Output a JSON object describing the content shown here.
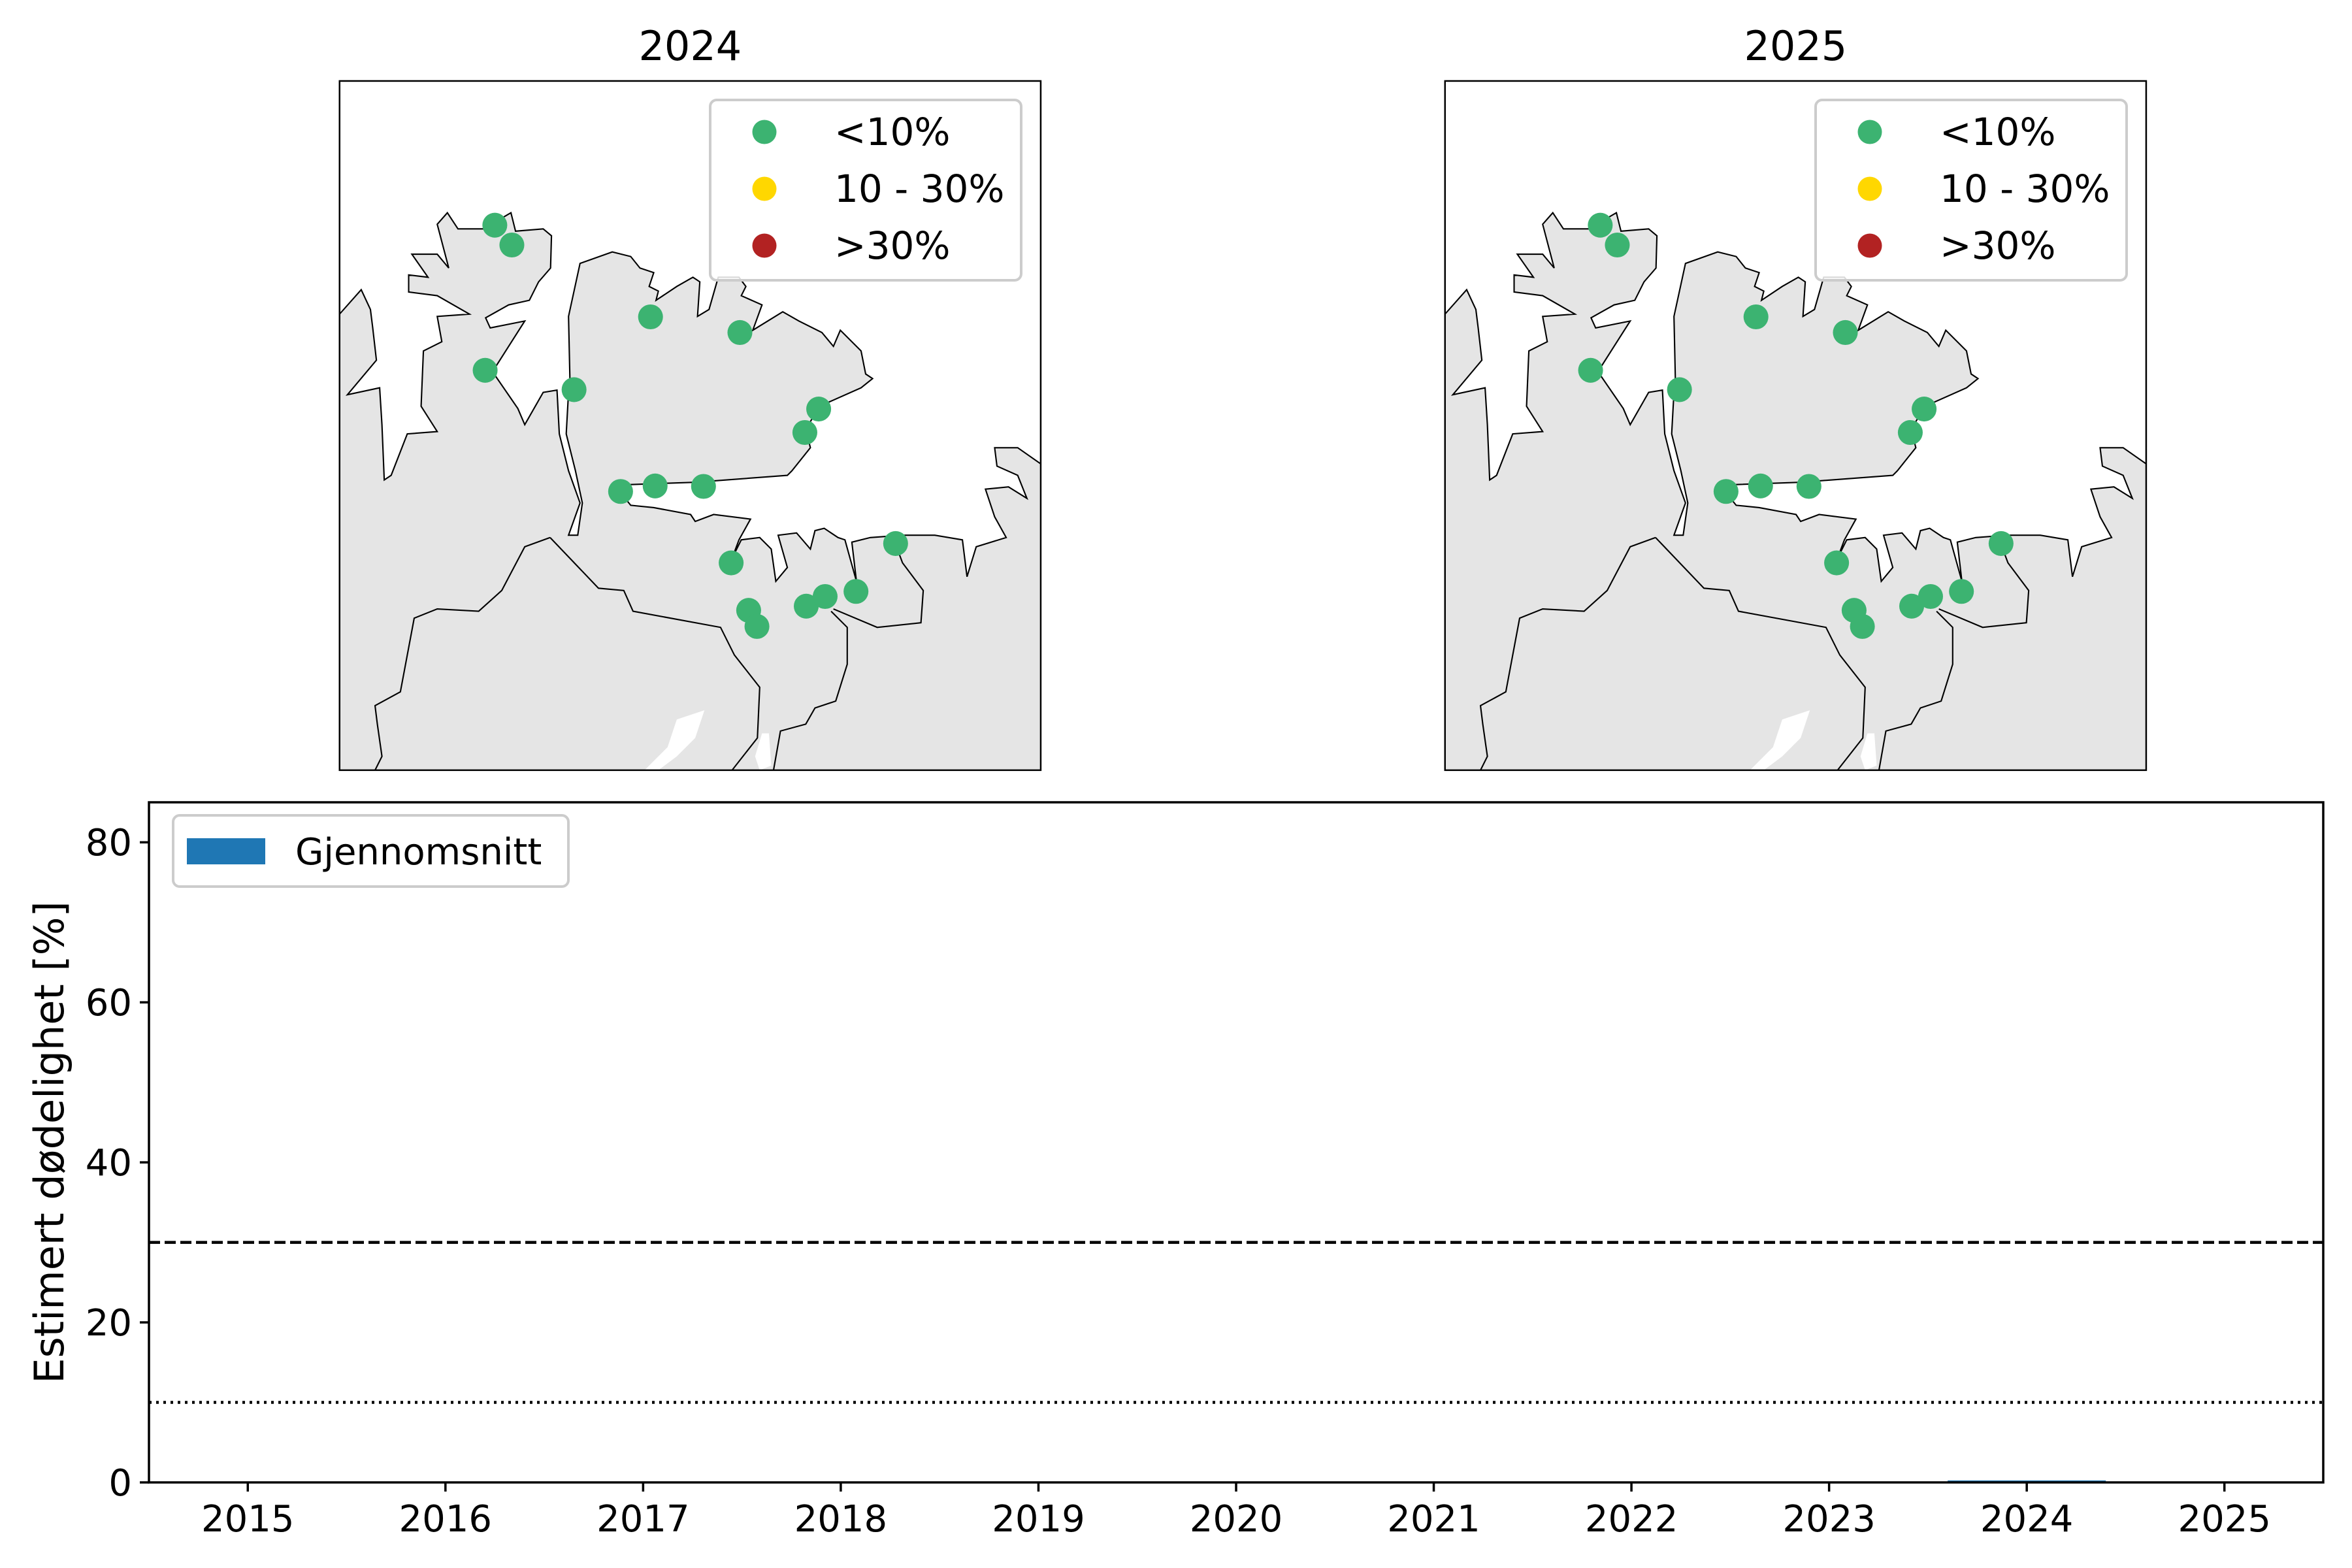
{
  "maps": [
    {
      "title": "2024",
      "sites": [
        "<10%",
        "<10%",
        "<10%",
        "<10%",
        "<10%",
        "<10%",
        "<10%",
        "<10%",
        "<10%",
        "<10%",
        "<10%",
        "<10%",
        "<10%",
        "<10%",
        "<10%",
        "<10%",
        "<10%",
        "<10%"
      ]
    },
    {
      "title": "2025",
      "sites": [
        "<10%",
        "<10%",
        "<10%",
        "<10%",
        "<10%",
        "<10%",
        "<10%",
        "<10%",
        "<10%",
        "<10%",
        "<10%",
        "<10%",
        "<10%",
        "<10%",
        "<10%",
        "<10%",
        "<10%",
        "<10%"
      ]
    }
  ],
  "map_legend": [
    {
      "label": "<10%",
      "color": "#3cb371"
    },
    {
      "label": "10 - 30%",
      "color": "#ffd700"
    },
    {
      "label": ">30%",
      "color": "#b22222"
    }
  ],
  "colors": {
    "land": "#e5e5e5",
    "sea": "#ffffff",
    "bar": "#1f77b4"
  },
  "chart_data": {
    "type": "bar",
    "categories": [
      "2015",
      "2016",
      "2017",
      "2018",
      "2019",
      "2020",
      "2021",
      "2022",
      "2023",
      "2024",
      "2025"
    ],
    "series": [
      {
        "name": "Gjennomsnitt",
        "x": [
          2024
        ],
        "values": [
          0.2
        ]
      }
    ],
    "xlabel": "",
    "ylabel": "Estimert dødelighet [%]",
    "xlim": [
      2014.5,
      2025.5
    ],
    "ylim": [
      0,
      85
    ],
    "yticks": [
      "0",
      "20",
      "40",
      "60",
      "80"
    ],
    "reference_lines": [
      {
        "y": 30,
        "style": "dashed"
      },
      {
        "y": 10,
        "style": "dotted"
      }
    ],
    "legend_position": "top-left",
    "grid": false
  }
}
